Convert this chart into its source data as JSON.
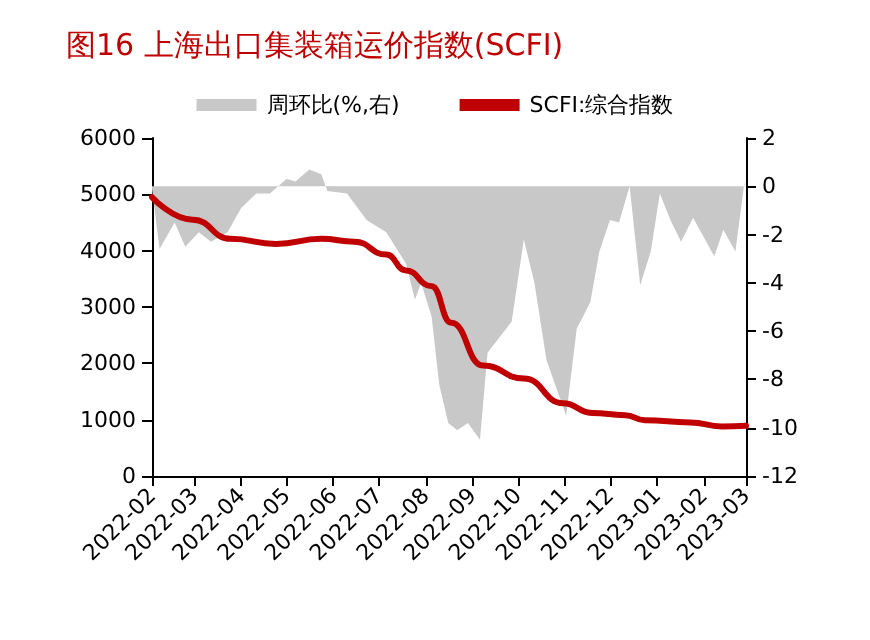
{
  "chart_data": {
    "type": "line",
    "title": "图16 上海出口集装箱运价指数(SCFI)",
    "xlim": [
      "2022-02",
      "2023-03"
    ],
    "xticks": [
      "2022-02",
      "2022-03",
      "2022-04",
      "2022-05",
      "2022-06",
      "2022-07",
      "2022-08",
      "2022-09",
      "2022-10",
      "2022-11",
      "2022-12",
      "2023-01",
      "2023-02",
      "2023-03"
    ],
    "ylim": [
      0,
      6000
    ],
    "yticks": [
      0,
      1000,
      2000,
      3000,
      4000,
      5000,
      6000
    ],
    "y2lim": [
      -12,
      2
    ],
    "y2ticks": [
      -12,
      -10,
      -8,
      -6,
      -4,
      -2,
      0,
      2
    ],
    "grid": false,
    "legend": "top",
    "series": [
      {
        "name": "周环比(%,右)",
        "type": "area",
        "axis": "y2",
        "color": "#c8c8c8",
        "x": [
          "2022-02-01",
          "2022-02-06",
          "2022-02-16",
          "2022-02-23",
          "2022-03-04",
          "2022-03-12",
          "2022-03-23",
          "2022-04-01",
          "2022-04-11",
          "2022-04-20",
          "2022-05-01",
          "2022-05-07",
          "2022-05-16",
          "2022-05-24",
          "2022-05-28",
          "2022-06-10",
          "2022-06-23",
          "2022-07-06",
          "2022-07-19",
          "2022-07-25",
          "2022-07-29",
          "2022-08-05",
          "2022-08-10",
          "2022-08-16",
          "2022-08-22",
          "2022-08-29",
          "2022-09-06",
          "2022-09-11",
          "2022-09-27",
          "2022-10-05",
          "2022-10-12",
          "2022-10-20",
          "2022-11-02",
          "2022-11-09",
          "2022-11-18",
          "2022-11-24",
          "2022-12-01",
          "2022-12-07",
          "2022-12-14",
          "2022-12-21",
          "2022-12-28",
          "2023-01-03",
          "2023-01-10",
          "2023-01-17",
          "2023-01-25",
          "2023-02-08",
          "2023-02-14",
          "2023-02-22",
          "2023-02-28"
        ],
        "values": [
          -0.1,
          -2.6,
          -1.5,
          -2.5,
          -1.9,
          -2.3,
          -1.9,
          -0.9,
          -0.3,
          -0.3,
          0.3,
          0.2,
          0.7,
          0.5,
          -0.2,
          -0.3,
          -1.4,
          -1.9,
          -3.2,
          -4.7,
          -4.0,
          -5.4,
          -8.2,
          -9.8,
          -10.1,
          -9.8,
          -10.5,
          -6.9,
          -5.6,
          -2.2,
          -4.0,
          -7.2,
          -9.5,
          -5.9,
          -4.8,
          -2.7,
          -1.4,
          -1.5,
          0,
          -4.1,
          -2.7,
          -0.3,
          -1.4,
          -2.3,
          -1.3,
          -2.9,
          -1.8,
          -2.7,
          0.2
        ]
      },
      {
        "name": "SCFI:综合指数",
        "color": "#c00000",
        "x": [
          "2022-02-01",
          "2022-02-28",
          "2022-03-25",
          "2022-04-24",
          "2022-05-24",
          "2022-06-15",
          "2022-07-06",
          "2022-07-19",
          "2022-08-05",
          "2022-08-18",
          "2022-09-08",
          "2022-10-05",
          "2022-10-31",
          "2022-11-19",
          "2022-12-11",
          "2022-12-24",
          "2023-01-23",
          "2023-02-13",
          "2023-03-01"
        ],
        "values": [
          4950,
          4550,
          4210,
          4120,
          4210,
          4160,
          3930,
          3650,
          3370,
          2720,
          1960,
          1730,
          1290,
          1120,
          1080,
          990,
          950,
          880,
          890
        ]
      }
    ]
  }
}
